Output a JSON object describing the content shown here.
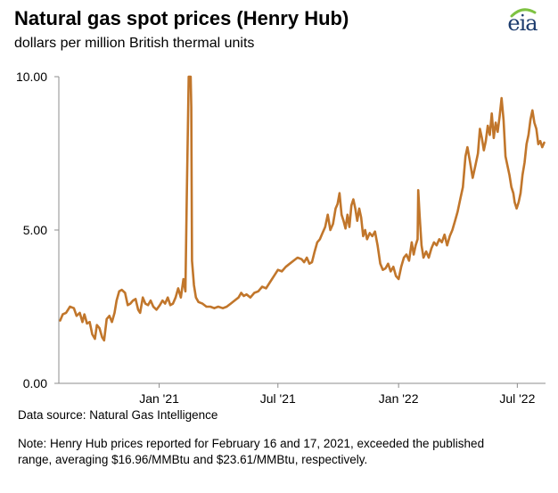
{
  "header": {
    "title": "Natural gas spot prices (Henry Hub)",
    "subtitle": "dollars per million British thermal units"
  },
  "logo": {
    "text": "eia",
    "icon": "eia-logo-arc",
    "accent": "#7ec242"
  },
  "footer": {
    "source": "Data source: Natural Gas Intelligence",
    "note": "Note: Henry Hub prices reported for February 16 and 17, 2021, exceeded the published range, averaging $16.96/MMBtu and $23.61/MMBtu, respectively."
  },
  "chart_data": {
    "type": "line",
    "title": "Natural gas spot prices (Henry Hub)",
    "ylabel": "dollars per million British thermal units",
    "xlabel": "",
    "ylim": [
      0,
      10
    ],
    "xlim": [
      "2020-08-01",
      "2022-08-13"
    ],
    "y_ticks": [
      {
        "value": 0,
        "label": "0.00"
      },
      {
        "value": 5,
        "label": "5.00"
      },
      {
        "value": 10,
        "label": "10.00"
      }
    ],
    "x_ticks": [
      {
        "value": "2021-01-01",
        "label": "Jan '21"
      },
      {
        "value": "2021-07-01",
        "label": "Jul '21"
      },
      {
        "value": "2022-01-01",
        "label": "Jan '22"
      },
      {
        "value": "2022-07-01",
        "label": "Jul '22"
      }
    ],
    "grid": {
      "x": false,
      "y": false
    },
    "line_color": "#c1762b",
    "series": [
      {
        "points": [
          [
            "2020-08-03",
            2.05
          ],
          [
            "2020-08-07",
            2.25
          ],
          [
            "2020-08-12",
            2.3
          ],
          [
            "2020-08-18",
            2.5
          ],
          [
            "2020-08-24",
            2.45
          ],
          [
            "2020-08-28",
            2.2
          ],
          [
            "2020-09-02",
            2.3
          ],
          [
            "2020-09-06",
            2.0
          ],
          [
            "2020-09-09",
            2.25
          ],
          [
            "2020-09-13",
            1.95
          ],
          [
            "2020-09-17",
            2.0
          ],
          [
            "2020-09-21",
            1.6
          ],
          [
            "2020-09-25",
            1.45
          ],
          [
            "2020-09-28",
            1.9
          ],
          [
            "2020-10-02",
            1.8
          ],
          [
            "2020-10-06",
            1.5
          ],
          [
            "2020-10-09",
            1.4
          ],
          [
            "2020-10-13",
            2.1
          ],
          [
            "2020-10-17",
            2.2
          ],
          [
            "2020-10-21",
            2.0
          ],
          [
            "2020-10-25",
            2.3
          ],
          [
            "2020-10-28",
            2.7
          ],
          [
            "2020-11-01",
            3.0
          ],
          [
            "2020-11-05",
            3.05
          ],
          [
            "2020-11-10",
            2.95
          ],
          [
            "2020-11-14",
            2.55
          ],
          [
            "2020-11-18",
            2.6
          ],
          [
            "2020-11-22",
            2.7
          ],
          [
            "2020-11-26",
            2.75
          ],
          [
            "2020-11-30",
            2.4
          ],
          [
            "2020-12-03",
            2.3
          ],
          [
            "2020-12-07",
            2.8
          ],
          [
            "2020-12-11",
            2.6
          ],
          [
            "2020-12-15",
            2.55
          ],
          [
            "2020-12-19",
            2.7
          ],
          [
            "2020-12-23",
            2.5
          ],
          [
            "2020-12-28",
            2.4
          ],
          [
            "2021-01-02",
            2.55
          ],
          [
            "2021-01-06",
            2.7
          ],
          [
            "2021-01-10",
            2.6
          ],
          [
            "2021-01-14",
            2.8
          ],
          [
            "2021-01-18",
            2.55
          ],
          [
            "2021-01-22",
            2.6
          ],
          [
            "2021-01-26",
            2.8
          ],
          [
            "2021-01-30",
            3.1
          ],
          [
            "2021-02-03",
            2.8
          ],
          [
            "2021-02-07",
            3.4
          ],
          [
            "2021-02-10",
            3.0
          ],
          [
            "2021-02-12",
            6.0
          ],
          [
            "2021-02-15",
            10.0
          ],
          [
            "2021-02-16",
            10.0
          ],
          [
            "2021-02-17",
            10.0
          ],
          [
            "2021-02-18",
            10.0
          ],
          [
            "2021-02-19",
            9.0
          ],
          [
            "2021-02-20",
            4.0
          ],
          [
            "2021-02-23",
            3.2
          ],
          [
            "2021-02-26",
            2.8
          ],
          [
            "2021-03-02",
            2.65
          ],
          [
            "2021-03-08",
            2.6
          ],
          [
            "2021-03-14",
            2.5
          ],
          [
            "2021-03-20",
            2.5
          ],
          [
            "2021-03-26",
            2.45
          ],
          [
            "2021-04-01",
            2.5
          ],
          [
            "2021-04-08",
            2.45
          ],
          [
            "2021-04-14",
            2.5
          ],
          [
            "2021-04-20",
            2.6
          ],
          [
            "2021-04-26",
            2.7
          ],
          [
            "2021-05-02",
            2.8
          ],
          [
            "2021-05-06",
            2.95
          ],
          [
            "2021-05-10",
            2.85
          ],
          [
            "2021-05-14",
            2.9
          ],
          [
            "2021-05-20",
            2.8
          ],
          [
            "2021-05-26",
            2.95
          ],
          [
            "2021-06-01",
            3.0
          ],
          [
            "2021-06-07",
            3.15
          ],
          [
            "2021-06-13",
            3.1
          ],
          [
            "2021-06-19",
            3.3
          ],
          [
            "2021-06-25",
            3.5
          ],
          [
            "2021-07-01",
            3.7
          ],
          [
            "2021-07-07",
            3.65
          ],
          [
            "2021-07-13",
            3.8
          ],
          [
            "2021-07-19",
            3.9
          ],
          [
            "2021-07-25",
            4.0
          ],
          [
            "2021-07-31",
            4.1
          ],
          [
            "2021-08-06",
            4.05
          ],
          [
            "2021-08-10",
            3.95
          ],
          [
            "2021-08-14",
            4.1
          ],
          [
            "2021-08-18",
            3.9
          ],
          [
            "2021-08-22",
            3.95
          ],
          [
            "2021-08-26",
            4.3
          ],
          [
            "2021-08-30",
            4.6
          ],
          [
            "2021-09-03",
            4.7
          ],
          [
            "2021-09-07",
            4.9
          ],
          [
            "2021-09-11",
            5.1
          ],
          [
            "2021-09-15",
            5.5
          ],
          [
            "2021-09-19",
            5.0
          ],
          [
            "2021-09-23",
            5.2
          ],
          [
            "2021-09-27",
            5.7
          ],
          [
            "2021-09-30",
            5.85
          ],
          [
            "2021-10-03",
            6.2
          ],
          [
            "2021-10-06",
            5.5
          ],
          [
            "2021-10-09",
            5.3
          ],
          [
            "2021-10-12",
            5.05
          ],
          [
            "2021-10-15",
            5.5
          ],
          [
            "2021-10-18",
            5.1
          ],
          [
            "2021-10-21",
            5.8
          ],
          [
            "2021-10-24",
            6.0
          ],
          [
            "2021-10-27",
            5.7
          ],
          [
            "2021-10-30",
            5.3
          ],
          [
            "2021-11-02",
            5.7
          ],
          [
            "2021-11-05",
            5.4
          ],
          [
            "2021-11-08",
            4.8
          ],
          [
            "2021-11-11",
            5.0
          ],
          [
            "2021-11-14",
            4.7
          ],
          [
            "2021-11-18",
            4.9
          ],
          [
            "2021-11-22",
            4.8
          ],
          [
            "2021-11-26",
            4.95
          ],
          [
            "2021-11-30",
            4.5
          ],
          [
            "2021-12-04",
            3.9
          ],
          [
            "2021-12-08",
            3.7
          ],
          [
            "2021-12-12",
            3.75
          ],
          [
            "2021-12-16",
            3.9
          ],
          [
            "2021-12-20",
            3.65
          ],
          [
            "2021-12-24",
            3.8
          ],
          [
            "2021-12-28",
            3.5
          ],
          [
            "2022-01-01",
            3.4
          ],
          [
            "2022-01-05",
            3.8
          ],
          [
            "2022-01-09",
            4.1
          ],
          [
            "2022-01-13",
            4.2
          ],
          [
            "2022-01-17",
            4.0
          ],
          [
            "2022-01-21",
            4.6
          ],
          [
            "2022-01-24",
            4.2
          ],
          [
            "2022-01-27",
            4.5
          ],
          [
            "2022-01-30",
            4.7
          ],
          [
            "2022-01-31",
            6.3
          ],
          [
            "2022-02-02",
            5.5
          ],
          [
            "2022-02-05",
            4.5
          ],
          [
            "2022-02-08",
            4.1
          ],
          [
            "2022-02-12",
            4.3
          ],
          [
            "2022-02-16",
            4.1
          ],
          [
            "2022-02-20",
            4.4
          ],
          [
            "2022-02-24",
            4.6
          ],
          [
            "2022-02-28",
            4.5
          ],
          [
            "2022-03-04",
            4.7
          ],
          [
            "2022-03-08",
            4.6
          ],
          [
            "2022-03-12",
            4.85
          ],
          [
            "2022-03-16",
            4.5
          ],
          [
            "2022-03-20",
            4.8
          ],
          [
            "2022-03-24",
            5.0
          ],
          [
            "2022-03-28",
            5.3
          ],
          [
            "2022-04-01",
            5.6
          ],
          [
            "2022-04-05",
            6.0
          ],
          [
            "2022-04-09",
            6.4
          ],
          [
            "2022-04-13",
            7.4
          ],
          [
            "2022-04-16",
            7.7
          ],
          [
            "2022-04-20",
            7.2
          ],
          [
            "2022-04-24",
            6.7
          ],
          [
            "2022-04-28",
            7.1
          ],
          [
            "2022-05-02",
            7.5
          ],
          [
            "2022-05-05",
            8.3
          ],
          [
            "2022-05-08",
            8.0
          ],
          [
            "2022-05-11",
            7.6
          ],
          [
            "2022-05-14",
            7.9
          ],
          [
            "2022-05-17",
            8.4
          ],
          [
            "2022-05-20",
            8.1
          ],
          [
            "2022-05-23",
            8.8
          ],
          [
            "2022-05-26",
            8.0
          ],
          [
            "2022-05-29",
            8.5
          ],
          [
            "2022-06-01",
            8.2
          ],
          [
            "2022-06-04",
            8.7
          ],
          [
            "2022-06-07",
            9.3
          ],
          [
            "2022-06-10",
            8.6
          ],
          [
            "2022-06-13",
            7.4
          ],
          [
            "2022-06-16",
            7.1
          ],
          [
            "2022-06-19",
            6.8
          ],
          [
            "2022-06-22",
            6.4
          ],
          [
            "2022-06-25",
            6.2
          ],
          [
            "2022-06-27",
            5.9
          ],
          [
            "2022-06-30",
            5.7
          ],
          [
            "2022-07-03",
            5.9
          ],
          [
            "2022-07-06",
            6.2
          ],
          [
            "2022-07-09",
            6.8
          ],
          [
            "2022-07-12",
            7.2
          ],
          [
            "2022-07-15",
            7.8
          ],
          [
            "2022-07-18",
            8.1
          ],
          [
            "2022-07-21",
            8.6
          ],
          [
            "2022-07-24",
            8.9
          ],
          [
            "2022-07-27",
            8.5
          ],
          [
            "2022-07-30",
            8.3
          ],
          [
            "2022-08-02",
            7.8
          ],
          [
            "2022-08-05",
            7.9
          ],
          [
            "2022-08-08",
            7.7
          ],
          [
            "2022-08-11",
            7.85
          ]
        ]
      }
    ]
  }
}
